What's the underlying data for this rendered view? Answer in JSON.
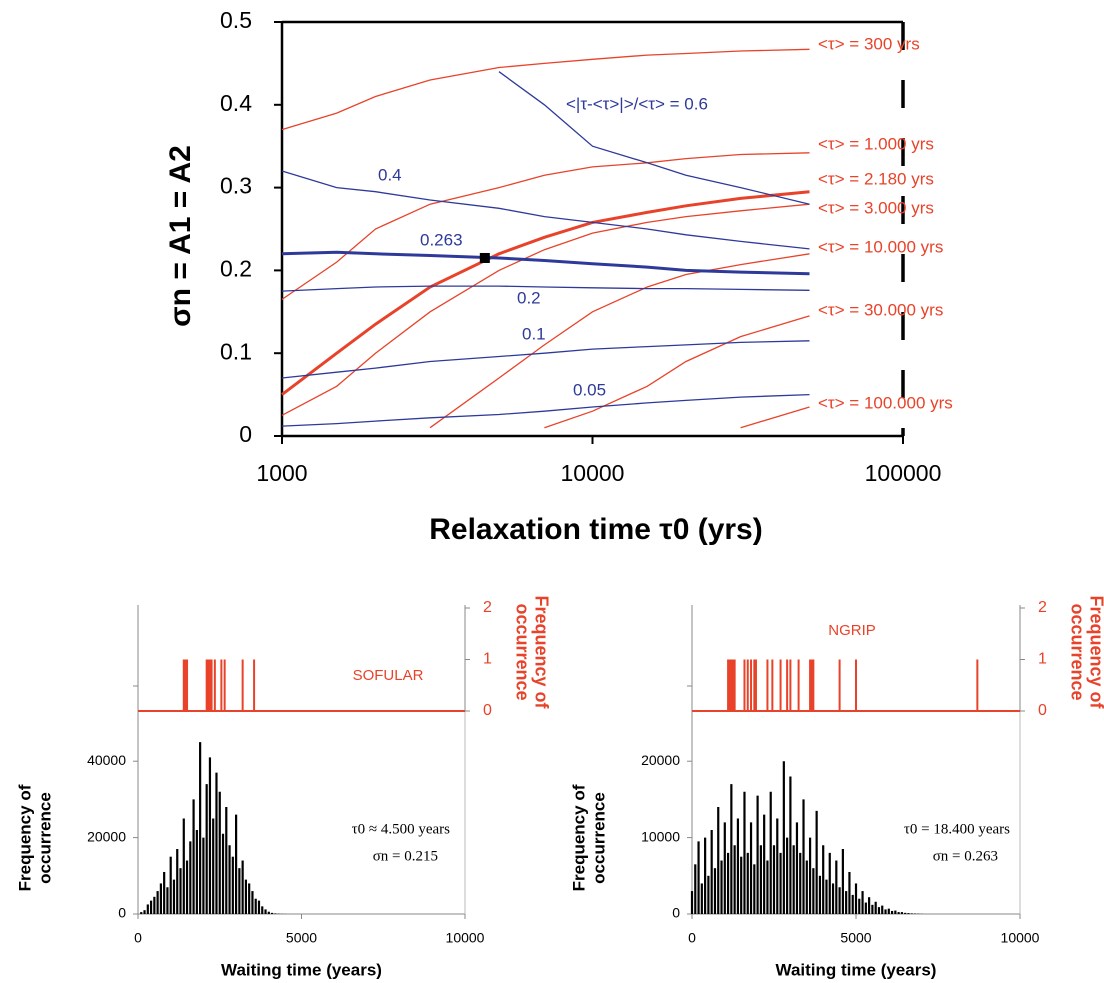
{
  "chart_data": [
    {
      "type": "line",
      "xscale": "log",
      "xlabel": "Relaxation time τ0 (yrs)",
      "ylabel": "σn = A1 = A2",
      "xlim": [
        1000,
        100000
      ],
      "xticks": [
        1000,
        10000,
        100000
      ],
      "ylim": [
        0,
        0.5
      ],
      "yticks": [
        0,
        0.1,
        0.2,
        0.3,
        0.4,
        0.5
      ],
      "x": [
        1000,
        1500,
        2000,
        3000,
        5000,
        7000,
        10000,
        15000,
        20000,
        30000,
        50000
      ],
      "series": [
        {
          "name": "<τ> = 300 yrs",
          "color": "#e8432a",
          "linewidth": 1.3,
          "values": [
            0.37,
            0.39,
            0.41,
            0.43,
            0.445,
            0.45,
            0.455,
            0.46,
            0.462,
            0.465,
            0.467
          ]
        },
        {
          "name": "<τ> = 1.000 yrs",
          "color": "#e8432a",
          "linewidth": 1.3,
          "values": [
            0.165,
            0.21,
            0.25,
            0.28,
            0.3,
            0.315,
            0.325,
            0.33,
            0.335,
            0.34,
            0.342
          ]
        },
        {
          "name": "<τ> = 2.180 yrs",
          "color": "#e8432a",
          "linewidth": 3,
          "values": [
            0.05,
            0.1,
            0.135,
            0.18,
            0.22,
            0.24,
            0.258,
            0.27,
            0.278,
            0.287,
            0.295
          ]
        },
        {
          "name": "<τ> = 3.000 yrs",
          "color": "#e8432a",
          "linewidth": 1.3,
          "values": [
            0.025,
            0.06,
            0.1,
            0.15,
            0.2,
            0.225,
            0.245,
            0.258,
            0.265,
            0.272,
            0.28
          ]
        },
        {
          "name": "<τ> = 10.000 yrs",
          "color": "#e8432a",
          "linewidth": 1.3,
          "values": [
            null,
            null,
            null,
            0.01,
            0.07,
            0.11,
            0.15,
            0.18,
            0.195,
            0.207,
            0.22
          ]
        },
        {
          "name": "<τ> = 30.000 yrs",
          "color": "#e8432a",
          "linewidth": 1.3,
          "values": [
            null,
            null,
            null,
            null,
            null,
            0.01,
            0.03,
            0.06,
            0.09,
            0.12,
            0.145
          ]
        },
        {
          "name": "<τ> = 100.000 yrs",
          "color": "#e8432a",
          "linewidth": 1.3,
          "values": [
            null,
            null,
            null,
            null,
            null,
            null,
            null,
            null,
            null,
            0.01,
            0.035
          ]
        },
        {
          "name": "<|τ-<τ>|>/<τ>  = 0.6",
          "color": "#2e3a9a",
          "linewidth": 1.3,
          "values": [
            null,
            null,
            null,
            null,
            0.44,
            0.4,
            0.35,
            0.33,
            0.315,
            0.3,
            0.28
          ]
        },
        {
          "name": "0.4",
          "color": "#2e3a9a",
          "linewidth": 1.3,
          "values": [
            0.32,
            0.3,
            0.295,
            0.285,
            0.275,
            0.265,
            0.258,
            0.25,
            0.243,
            0.235,
            0.226
          ]
        },
        {
          "name": "0.263",
          "color": "#2e3a9a",
          "linewidth": 3,
          "values": [
            0.22,
            0.222,
            0.22,
            0.218,
            0.215,
            0.212,
            0.208,
            0.204,
            0.2,
            0.198,
            0.196
          ]
        },
        {
          "name": "0.2",
          "color": "#2e3a9a",
          "linewidth": 1.3,
          "values": [
            0.175,
            0.178,
            0.18,
            0.181,
            0.181,
            0.18,
            0.179,
            0.178,
            0.178,
            0.177,
            0.176
          ]
        },
        {
          "name": "0.1",
          "color": "#2e3a9a",
          "linewidth": 1.3,
          "values": [
            0.07,
            0.077,
            0.082,
            0.09,
            0.096,
            0.1,
            0.105,
            0.108,
            0.11,
            0.113,
            0.115
          ]
        },
        {
          "name": "0.05",
          "color": "#2e3a9a",
          "linewidth": 1.3,
          "values": [
            0.012,
            0.015,
            0.018,
            0.022,
            0.026,
            0.03,
            0.035,
            0.04,
            0.043,
            0.047,
            0.05
          ]
        }
      ],
      "marker": {
        "x": 4500,
        "y": 0.215,
        "color": "#000000"
      }
    },
    {
      "type": "bar",
      "label": "SOFULAR",
      "xlabel": "Waiting time (years)",
      "ylabel": [
        "Frequency of",
        "occurrence"
      ],
      "y2label": [
        "Frequency of",
        "occurrence"
      ],
      "annotations": [
        "τ0 ≈ 4.500 years",
        "σn = 0.215"
      ],
      "xlim": [
        0,
        10000
      ],
      "xticks": [
        0,
        5000,
        10000
      ],
      "ylim": [
        0,
        50000
      ],
      "yticks": [
        0,
        20000,
        40000
      ],
      "y2lim": [
        0,
        2
      ],
      "y2ticks": [
        0,
        1,
        2
      ],
      "series": [
        {
          "color": "#000000",
          "x": [
            0,
            100,
            200,
            300,
            400,
            500,
            600,
            700,
            800,
            900,
            1000,
            1100,
            1200,
            1300,
            1400,
            1500,
            1600,
            1700,
            1800,
            1900,
            2000,
            2100,
            2200,
            2300,
            2400,
            2500,
            2600,
            2700,
            2800,
            2900,
            3000,
            3100,
            3200,
            3300,
            3400,
            3500,
            3600,
            3700,
            3800,
            3900,
            4000,
            4100,
            4200,
            4300,
            4400,
            4500
          ],
          "values": [
            0,
            500,
            1000,
            2500,
            3500,
            4500,
            6000,
            8000,
            11000,
            7000,
            15000,
            9000,
            17000,
            12000,
            25000,
            14000,
            19000,
            30000,
            22000,
            45000,
            20000,
            34000,
            41000,
            25000,
            37000,
            32000,
            21000,
            28000,
            18000,
            15000,
            26000,
            12000,
            14000,
            9000,
            8000,
            6000,
            4000,
            3500,
            2000,
            1200,
            600,
            300,
            150,
            80,
            40,
            20
          ]
        },
        {
          "color": "#e8432a",
          "axis": "y2",
          "x": [
            1400,
            1450,
            1500,
            2100,
            2150,
            2200,
            2250,
            2350,
            2550,
            2650,
            3200,
            3550
          ],
          "values": [
            1,
            1,
            1,
            1,
            1,
            1,
            1,
            1,
            1,
            1,
            1,
            1
          ]
        }
      ]
    },
    {
      "type": "bar",
      "label": "NGRIP",
      "xlabel": "Waiting time (years)",
      "ylabel": [
        "Frequency of",
        "occurrence"
      ],
      "y2label": [
        "Frequency of",
        "occurrence"
      ],
      "annotations": [
        "τ0 = 18.400 years",
        "σn = 0.263"
      ],
      "xlim": [
        0,
        10000
      ],
      "xticks": [
        0,
        5000,
        10000
      ],
      "ylim": [
        0,
        25000
      ],
      "yticks": [
        0,
        10000,
        20000
      ],
      "y2lim": [
        0,
        2
      ],
      "y2ticks": [
        0,
        1,
        2
      ],
      "series": [
        {
          "color": "#000000",
          "x": [
            0,
            100,
            200,
            300,
            400,
            500,
            600,
            700,
            800,
            900,
            1000,
            1100,
            1200,
            1300,
            1400,
            1500,
            1600,
            1700,
            1800,
            1900,
            2000,
            2100,
            2200,
            2300,
            2400,
            2500,
            2600,
            2700,
            2800,
            2900,
            3000,
            3100,
            3200,
            3300,
            3400,
            3500,
            3600,
            3700,
            3800,
            3900,
            4000,
            4100,
            4200,
            4300,
            4400,
            4500,
            4600,
            4700,
            4800,
            4900,
            5000,
            5100,
            5200,
            5300,
            5400,
            5500,
            5600,
            5700,
            5800,
            5900,
            6000,
            6100,
            6200,
            6300,
            6400,
            6500,
            6600,
            6700,
            6800,
            6900,
            7000
          ],
          "values": [
            3000,
            6500,
            9500,
            4000,
            10000,
            5000,
            11000,
            6000,
            14000,
            7000,
            12000,
            8000,
            17000,
            9000,
            12500,
            7500,
            16000,
            8000,
            12000,
            6500,
            15500,
            9000,
            13000,
            7000,
            16000,
            9000,
            12500,
            8000,
            20000,
            10000,
            18000,
            9000,
            12000,
            8000,
            15000,
            7000,
            10000,
            6000,
            13500,
            5000,
            9000,
            4500,
            8000,
            4000,
            7000,
            3500,
            8500,
            3000,
            5500,
            2500,
            4000,
            2000,
            3000,
            1500,
            2200,
            1200,
            1600,
            900,
            1100,
            600,
            700,
            400,
            450,
            250,
            250,
            150,
            120,
            80,
            60,
            40,
            20
          ]
        },
        {
          "color": "#e8432a",
          "axis": "y2",
          "x": [
            1100,
            1150,
            1200,
            1250,
            1300,
            1600,
            1700,
            1800,
            1900,
            1950,
            2300,
            2450,
            2700,
            2900,
            3000,
            3250,
            3600,
            3650,
            3700,
            4500,
            5000,
            8700
          ],
          "values": [
            1,
            1,
            1,
            1,
            1,
            1,
            1,
            1,
            1,
            1,
            1,
            1,
            1,
            1,
            1,
            1,
            1,
            1,
            1,
            1,
            1,
            1
          ]
        }
      ]
    }
  ]
}
